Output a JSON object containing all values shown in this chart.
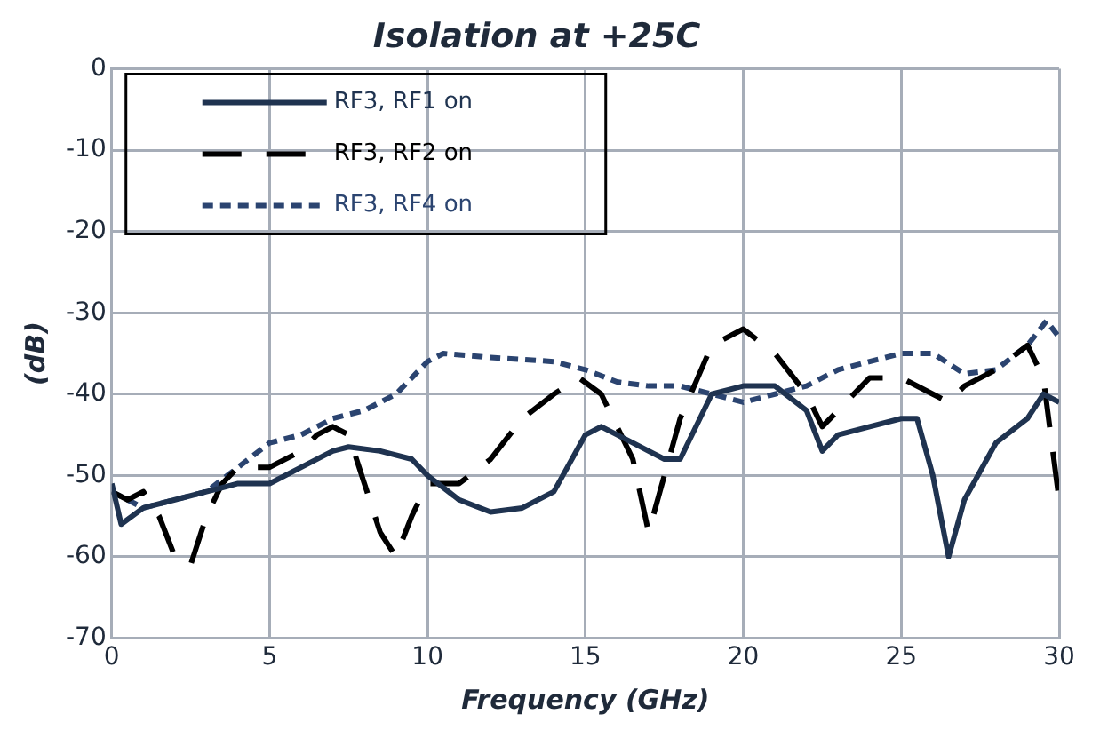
{
  "chart_data": {
    "type": "line",
    "title": "Isolation at +25C",
    "xlabel": "Frequency (GHz)",
    "ylabel": "(dB)",
    "xlim": [
      0,
      30
    ],
    "xticks": [
      0,
      5,
      10,
      15,
      20,
      25,
      30
    ],
    "ylim": [
      -70,
      0
    ],
    "yticks": [
      -70,
      -60,
      -50,
      -40,
      -30,
      -20,
      -10,
      0
    ],
    "grid": true,
    "legend": "top left",
    "marker": "none",
    "series": [
      {
        "name": "RF3, RF1 on",
        "color": "#1f3350",
        "line_style": "solid",
        "x": [
          0,
          0.3,
          1,
          2,
          3,
          4,
          5,
          6,
          7,
          7.5,
          8.5,
          9.5,
          10,
          11,
          12,
          13,
          14,
          15,
          15.5,
          16.5,
          17.5,
          18,
          19,
          20,
          21,
          22,
          22.5,
          23,
          24,
          25,
          25.5,
          26,
          26.5,
          27,
          28,
          29,
          29.5,
          30
        ],
        "values": [
          -51,
          -56,
          -54,
          -53,
          -52,
          -51,
          -51,
          -49,
          -47,
          -46.5,
          -47,
          -48,
          -50,
          -53,
          -54.5,
          -54,
          -52,
          -45,
          -44,
          -46,
          -48,
          -48,
          -40,
          -39,
          -39,
          -42,
          -47,
          -45,
          -44,
          -43,
          -43,
          -50,
          -60,
          -53,
          -46,
          -43,
          -40,
          -41
        ]
      },
      {
        "name": "RF3, RF2 on",
        "color": "#000000",
        "line_style": "dashed",
        "x": [
          0,
          0.5,
          1,
          1.5,
          2,
          2.5,
          3,
          3.5,
          4,
          5,
          6,
          6.5,
          7,
          7.5,
          8,
          8.5,
          9,
          9.5,
          10,
          11,
          12,
          13,
          14,
          14.8,
          15.5,
          16.5,
          17,
          17.5,
          18,
          19,
          20,
          21,
          22,
          22.5,
          23,
          24,
          25,
          26,
          26.5,
          27,
          28,
          29,
          29.5,
          30
        ],
        "values": [
          -52,
          -53,
          -52,
          -55,
          -60,
          -61,
          -55,
          -51,
          -49,
          -49,
          -47,
          -45,
          -44,
          -45,
          -51,
          -57,
          -60,
          -55,
          -51,
          -51,
          -48,
          -43,
          -40,
          -38,
          -40,
          -48,
          -57,
          -50,
          -43,
          -34,
          -32,
          -35,
          -40,
          -44,
          -42,
          -38,
          -38,
          -40,
          -41,
          -39,
          -37,
          -34,
          -38,
          -53
        ]
      },
      {
        "name": "RF3, RF4 on",
        "color": "#2b4470",
        "line_style": "dotted",
        "x": [
          0,
          1,
          2,
          3,
          4,
          5,
          6,
          7,
          8,
          9,
          10,
          10.5,
          12,
          14,
          15,
          16,
          17,
          18,
          19,
          20,
          21,
          22,
          23,
          24,
          25,
          26,
          27,
          28,
          29,
          29.6,
          30
        ],
        "values": [
          -52,
          -54,
          -53,
          -52,
          -49,
          -46,
          -45,
          -43,
          -42,
          -40,
          -36,
          -35,
          -35.5,
          -36,
          -37,
          -38.5,
          -39,
          -39,
          -40,
          -41,
          -40,
          -39,
          -37,
          -36,
          -35,
          -35,
          -37.5,
          -37,
          -34,
          -31,
          -33
        ]
      }
    ]
  }
}
